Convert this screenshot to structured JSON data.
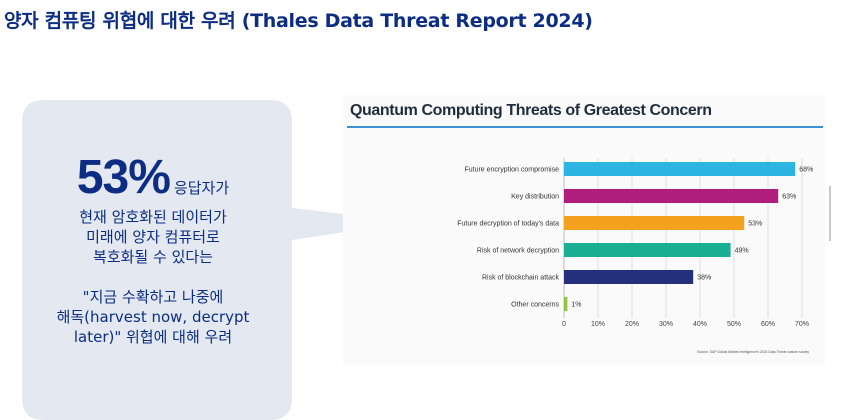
{
  "slide": {
    "title": "양자 컴퓨팅 위협에 대한 우려 (Thales Data Threat Report 2024)"
  },
  "callout": {
    "stat_value": "53%",
    "stat_suffix": "응답자가",
    "desc_lines": [
      "현재 암호화된 데이터가",
      "미래에 양자 컴퓨터로",
      "복호화될 수 있다는"
    ],
    "quote_lines": [
      "\"지금 수확하고 나중에",
      "해독(harvest now, decrypt",
      "later)\" 위협에 대해 우려"
    ],
    "bg_color": "#e4e8f0",
    "text_color": "#0c2d83"
  },
  "chart_data": {
    "type": "bar",
    "orientation": "horizontal",
    "title": "Quantum Computing Threats of Greatest Concern",
    "categories": [
      "Future encryption compromise",
      "Key distribution",
      "Future decryption of today's data",
      "Risk of network decryption",
      "Risk of blockchain attack",
      "Other concerns"
    ],
    "values": [
      68,
      63,
      53,
      49,
      38,
      1
    ],
    "data_labels": [
      "68%",
      "63%",
      "53%",
      "49%",
      "38%",
      "1%"
    ],
    "colors": [
      "#2cb5e0",
      "#b01e7c",
      "#f4a11d",
      "#1aae93",
      "#25307d",
      "#8cc63f"
    ],
    "xlim": [
      0,
      70
    ],
    "xticks": [
      "0",
      "10%",
      "20%",
      "30%",
      "40%",
      "50%",
      "60%",
      "70%"
    ],
    "grid": true,
    "source": "Source: S&P Global Market Intelligence's 2024 Data Threat custom survey",
    "title_rule_color": "#3d8fd6"
  }
}
